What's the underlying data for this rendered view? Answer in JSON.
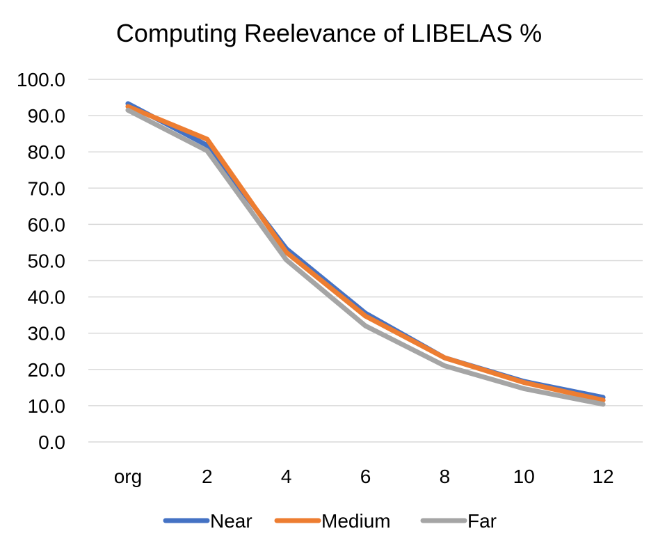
{
  "chart_data": {
    "type": "line",
    "title": "Computing Reelevance of LIBELAS %",
    "xlabel": "",
    "ylabel": "",
    "categories": [
      "org",
      "2",
      "4",
      "6",
      "8",
      "10",
      "12"
    ],
    "ylim": [
      0,
      100
    ],
    "yticks": [
      "0.0",
      "10.0",
      "20.0",
      "30.0",
      "40.0",
      "50.0",
      "60.0",
      "70.0",
      "80.0",
      "90.0",
      "100.0"
    ],
    "grid": true,
    "legend_position": "bottom",
    "series": [
      {
        "name": "Near",
        "color": "#4472C4",
        "values": [
          93.3,
          81.8,
          53.3,
          35.5,
          23.2,
          16.7,
          12.3
        ]
      },
      {
        "name": "Medium",
        "color": "#ED7D31",
        "values": [
          92.5,
          83.5,
          52.3,
          34.7,
          23.2,
          16.4,
          11.5
        ]
      },
      {
        "name": "Far",
        "color": "#A5A5A5",
        "values": [
          91.5,
          80.3,
          50.2,
          32.0,
          21.0,
          14.7,
          10.4
        ]
      }
    ]
  }
}
